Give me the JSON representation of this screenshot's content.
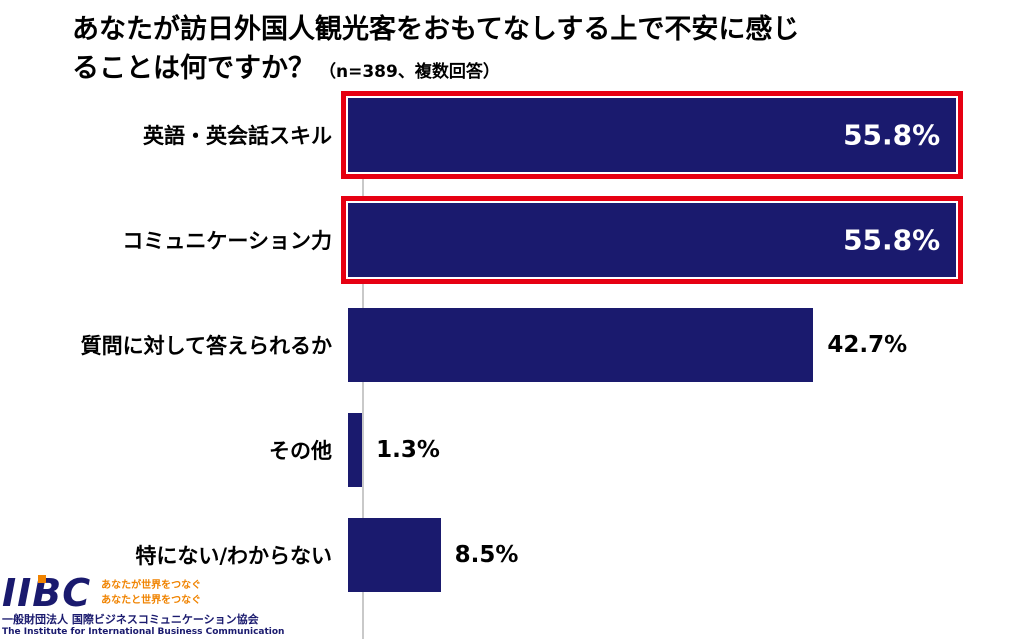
{
  "title": {
    "main_line1": "あなたが訪日外国人観光客をおもてなしする上で不安に感じ",
    "main_line2": "ることは何ですか？",
    "note": "（n=389、複数回答）"
  },
  "chart_data": {
    "type": "bar",
    "orientation": "horizontal",
    "title": "あなたが訪日外国人観光客をおもてなしする上で不安に感じることは何ですか？",
    "subtitle": "（n=389、複数回答）",
    "categories": [
      "英語・英会話スキル",
      "コミュニケーション力",
      "質問に対して答えられるか",
      "その他",
      "特にない/わからない"
    ],
    "values": [
      55.8,
      55.8,
      42.7,
      1.3,
      8.5
    ],
    "value_labels": [
      "55.8%",
      "55.8%",
      "42.7%",
      "1.3%",
      "8.5%"
    ],
    "highlighted": [
      true,
      true,
      false,
      false,
      false
    ],
    "label_inside": [
      true,
      true,
      false,
      false,
      false
    ],
    "xlim": [
      0,
      60
    ],
    "grid": false,
    "legend": false,
    "bar_color": "#1a1a6e",
    "highlight_border_color": "#e60012"
  },
  "logo": {
    "brand": "IIBC",
    "tagline_line1": "あなたが世界をつなぐ",
    "tagline_line2": "あなたと世界をつなぐ",
    "org_jp": "一般財団法人 国際ビジネスコミュニケーション協会",
    "org_en": "The Institute for International Business Communication",
    "accent_color": "#f08300",
    "brand_color": "#1a1a6e"
  }
}
